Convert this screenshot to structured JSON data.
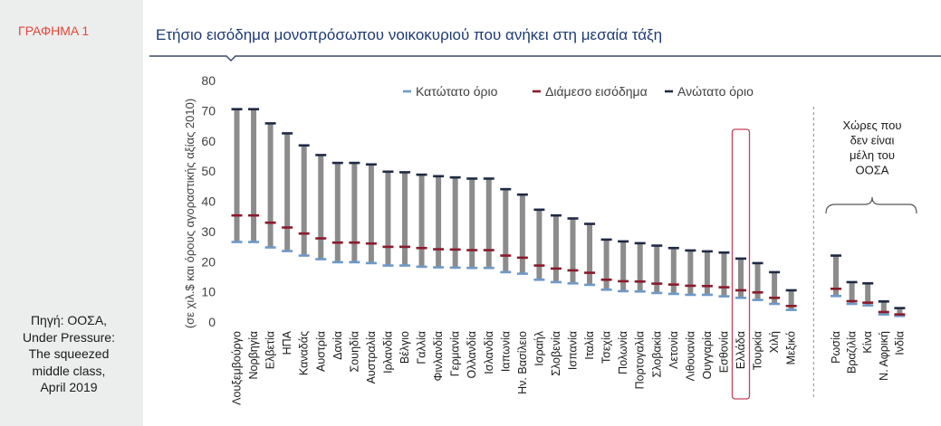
{
  "sidebar": {
    "figure_label": "ΓΡΑΦΗΜΑ 1",
    "source_text": "Πηγή: ΟΟΣΑ,\nUnder Pressure:\nThe squeezed\nmiddle class,\nApril 2019"
  },
  "colors": {
    "title": "#1f3b73",
    "figure_label": "#e0483a",
    "bar": "#8c8c8c",
    "lower": "#6e99c9",
    "median": "#8b1a2b",
    "upper": "#1f2a44",
    "highlight": "#c0455a",
    "axis_text": "#404040"
  },
  "chart_data": {
    "type": "bar",
    "title": "Ετήσιο εισόδημα μονοπρόσωπου νοικοκυριού που ανήκει στη μεσαία τάξη",
    "ylabel": "(σε χιλ.$ και όρους αγοραστικής αξίας 2010)",
    "ylim": [
      0,
      80
    ],
    "yticks": [
      0,
      10,
      20,
      30,
      40,
      50,
      60,
      70,
      80
    ],
    "legend": [
      "Κατώτατο όριο",
      "Διάμεσο εισόδημα",
      "Ανώτατο όριο"
    ],
    "legend_position": "top",
    "categories": [
      "Λουξεμβούργο",
      "Νορβηγία",
      "Ελβετία",
      "ΗΠΑ",
      "Καναδάς",
      "Αυστρία",
      "Δανία",
      "Σουηδία",
      "Αυστραλία",
      "Ιρλανδία",
      "Βέλγιο",
      "Γαλλία",
      "Φινλανδία",
      "Γερμανία",
      "Ολλανδία",
      "Ισλανδία",
      "Ιαπωνία",
      "Ην. Βασίλειο",
      "Ισραήλ",
      "Σλοβενία",
      "Ισπανία",
      "Ιταλία",
      "Τσεχία",
      "Πολωνία",
      "Πορτογαλία",
      "Σλοβακία",
      "Λετονία",
      "Λιθουανία",
      "Ουγγαρία",
      "Εσθονία",
      "Ελλάδα",
      "Τουρκία",
      "Χιλή",
      "Μεξικό",
      "Ρωσία",
      "Βραζιλία",
      "Κίνα",
      "Ν. Αφρική",
      "Ινδία"
    ],
    "series": [
      {
        "name": "Κατώτατο όριο",
        "values": [
          26.5,
          26.5,
          24.7,
          23.5,
          22.0,
          20.8,
          19.8,
          19.8,
          19.5,
          18.7,
          18.7,
          18.3,
          18.1,
          18.0,
          17.9,
          17.9,
          16.5,
          16.0,
          14.0,
          13.2,
          12.8,
          12.3,
          10.7,
          10.2,
          10.1,
          9.6,
          9.3,
          9.0,
          9.0,
          8.5,
          8.0,
          7.3,
          6.0,
          4.0,
          8.6,
          6.0,
          5.5,
          2.5,
          2.0
        ]
      },
      {
        "name": "Διάμεσο εισόδημα",
        "values": [
          35.3,
          35.3,
          32.9,
          31.3,
          29.3,
          27.7,
          26.3,
          26.3,
          26.0,
          24.9,
          24.9,
          24.5,
          24.1,
          24.0,
          23.8,
          23.8,
          22.0,
          21.3,
          18.7,
          17.7,
          17.1,
          16.3,
          14.0,
          13.5,
          13.4,
          12.7,
          12.4,
          12.0,
          11.9,
          11.5,
          10.5,
          9.8,
          8.0,
          5.3,
          11.0,
          6.9,
          6.4,
          3.3,
          2.5
        ]
      },
      {
        "name": "Ανώτατο όριο",
        "values": [
          70.5,
          70.5,
          65.8,
          62.5,
          58.5,
          55.3,
          52.7,
          52.7,
          52.2,
          49.8,
          49.6,
          48.8,
          48.3,
          47.9,
          47.5,
          47.5,
          44.0,
          42.2,
          37.2,
          35.3,
          34.3,
          32.5,
          27.3,
          26.7,
          26.1,
          25.3,
          24.5,
          23.7,
          23.4,
          23.0,
          21.0,
          19.5,
          16.5,
          10.5,
          22.0,
          13.2,
          12.8,
          6.8,
          4.6
        ]
      }
    ],
    "highlight_category": "Ελλάδα",
    "group_annotation": "Χώρες που\nδεν είναι\nμέλη του\nΟΟΣΑ",
    "non_oecd_count": 5
  }
}
